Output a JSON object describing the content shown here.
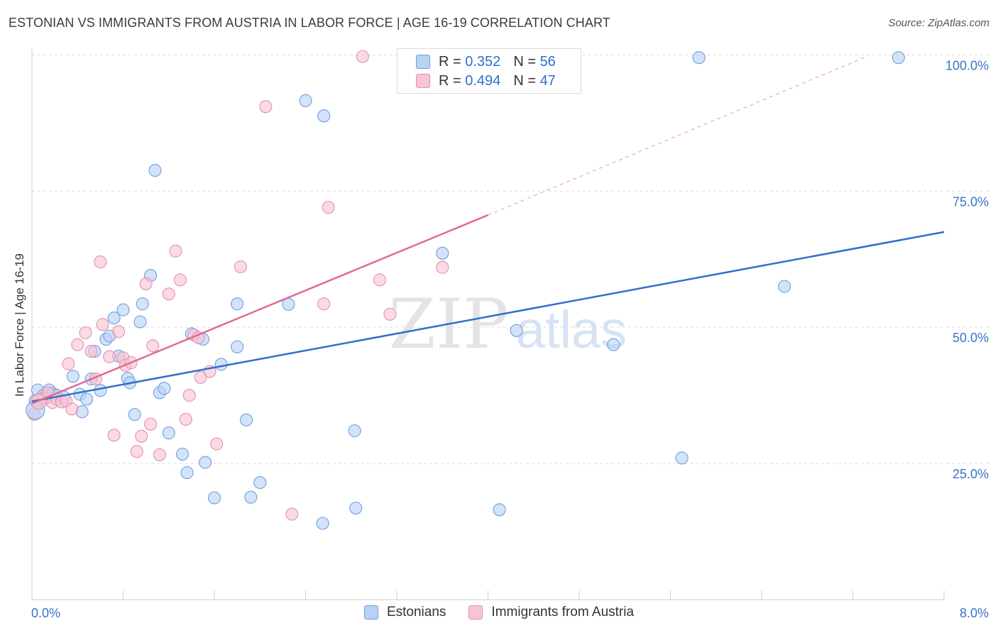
{
  "header": {
    "title": "ESTONIAN VS IMMIGRANTS FROM AUSTRIA IN LABOR FORCE | AGE 16-19 CORRELATION CHART",
    "source": "Source: ZipAtlas.com"
  },
  "watermark": {
    "zip": "ZIP",
    "atlas": "atlas"
  },
  "legend_top": {
    "rows": [
      {
        "r_label": "R =",
        "r_value": "0.352",
        "n_label": "N =",
        "n_value": "56"
      },
      {
        "r_label": "R =",
        "r_value": "0.494",
        "n_label": "N =",
        "n_value": "47"
      }
    ]
  },
  "legend_bottom": {
    "items": [
      "Estonians",
      "Immigrants from Austria"
    ]
  },
  "colors": {
    "blue_fill": "#b8d2f3",
    "blue_stroke": "#6f9fdf",
    "blue_line": "#2f6fcb",
    "pink_fill": "#f7c4d3",
    "pink_stroke": "#e98fac",
    "pink_line": "#e06a93",
    "grid": "#dddddd",
    "tick_label": "#3a72c8"
  },
  "chart_data": {
    "type": "scatter",
    "title": "ESTONIAN VS IMMIGRANTS FROM AUSTRIA IN LABOR FORCE | AGE 16-19 CORRELATION CHART",
    "xlabel": "",
    "ylabel": "In Labor Force | Age 16-19",
    "xlim": [
      0,
      8
    ],
    "ylim": [
      0,
      102
    ],
    "x_tick_labels": [
      {
        "value": 0,
        "label": "0.0%"
      },
      {
        "value": 8,
        "label": "8.0%"
      }
    ],
    "y_tick_labels": [
      {
        "value": 25,
        "label": "25.0%"
      },
      {
        "value": 50,
        "label": "50.0%"
      },
      {
        "value": 75,
        "label": "75.0%"
      },
      {
        "value": 100,
        "label": "100.0%"
      }
    ],
    "grid": true,
    "legend_position": "top-center",
    "series": [
      {
        "name": "Estonians",
        "R": 0.352,
        "N": 56,
        "trend": {
          "x": [
            0.0,
            8.0
          ],
          "y": [
            36.4,
            67.5
          ],
          "style": "solid"
        },
        "points": [
          [
            0.03,
            36.5
          ],
          [
            0.05,
            38.5
          ],
          [
            0.1,
            37.5
          ],
          [
            0.12,
            37.0
          ],
          [
            0.15,
            38.5
          ],
          [
            0.18,
            37.8
          ],
          [
            0.22,
            37.5
          ],
          [
            0.28,
            37.2
          ],
          [
            0.36,
            41.0
          ],
          [
            0.42,
            37.7
          ],
          [
            0.44,
            34.5
          ],
          [
            0.48,
            36.8
          ],
          [
            0.55,
            45.6
          ],
          [
            0.52,
            40.5
          ],
          [
            0.6,
            38.4
          ],
          [
            0.65,
            47.8
          ],
          [
            0.68,
            48.4
          ],
          [
            0.72,
            51.7
          ],
          [
            0.76,
            44.7
          ],
          [
            0.8,
            53.2
          ],
          [
            0.84,
            40.6
          ],
          [
            0.86,
            39.8
          ],
          [
            0.9,
            34.0
          ],
          [
            0.95,
            51.0
          ],
          [
            0.97,
            54.3
          ],
          [
            1.04,
            59.5
          ],
          [
            1.08,
            78.8
          ],
          [
            1.12,
            38.0
          ],
          [
            1.16,
            38.8
          ],
          [
            1.2,
            30.6
          ],
          [
            1.32,
            26.7
          ],
          [
            1.36,
            23.3
          ],
          [
            1.4,
            48.8
          ],
          [
            1.5,
            47.8
          ],
          [
            1.52,
            25.2
          ],
          [
            1.6,
            18.7
          ],
          [
            1.66,
            43.2
          ],
          [
            1.8,
            54.3
          ],
          [
            1.8,
            46.4
          ],
          [
            1.88,
            33.0
          ],
          [
            1.92,
            18.8
          ],
          [
            2.0,
            21.5
          ],
          [
            2.25,
            54.2
          ],
          [
            2.4,
            91.6
          ],
          [
            2.56,
            88.8
          ],
          [
            2.55,
            14.0
          ],
          [
            2.83,
            31.0
          ],
          [
            2.84,
            16.8
          ],
          [
            3.6,
            63.6
          ],
          [
            4.1,
            16.5
          ],
          [
            4.25,
            49.4
          ],
          [
            5.7,
            26.0
          ],
          [
            5.85,
            99.5
          ],
          [
            6.6,
            57.5
          ],
          [
            5.1,
            46.8
          ],
          [
            7.6,
            99.5
          ]
        ]
      },
      {
        "name": "Immigrants from Austria",
        "R": 0.494,
        "N": 47,
        "trend": {
          "x": [
            0.0,
            4.0
          ],
          "y": [
            36.0,
            70.6
          ],
          "style": "solid",
          "extension": {
            "x": [
              4.0,
              7.3
            ],
            "y": [
              70.6,
              99.5
            ],
            "style": "dashed"
          }
        },
        "points": [
          [
            0.02,
            34.0
          ],
          [
            0.06,
            36.5
          ],
          [
            0.1,
            37.0
          ],
          [
            0.14,
            38.0
          ],
          [
            0.18,
            36.2
          ],
          [
            0.22,
            36.8
          ],
          [
            0.26,
            36.3
          ],
          [
            0.3,
            36.5
          ],
          [
            0.32,
            43.3
          ],
          [
            0.35,
            35.0
          ],
          [
            0.4,
            46.8
          ],
          [
            0.47,
            49.0
          ],
          [
            0.52,
            45.6
          ],
          [
            0.56,
            40.5
          ],
          [
            0.6,
            62.0
          ],
          [
            0.62,
            50.5
          ],
          [
            0.68,
            44.6
          ],
          [
            0.72,
            30.2
          ],
          [
            0.76,
            49.2
          ],
          [
            0.8,
            44.4
          ],
          [
            0.82,
            43.0
          ],
          [
            0.87,
            43.5
          ],
          [
            0.92,
            27.2
          ],
          [
            0.96,
            30.0
          ],
          [
            1.0,
            58.0
          ],
          [
            1.04,
            32.2
          ],
          [
            1.06,
            46.6
          ],
          [
            1.12,
            26.6
          ],
          [
            1.2,
            56.1
          ],
          [
            1.26,
            64.0
          ],
          [
            1.3,
            58.7
          ],
          [
            1.35,
            33.1
          ],
          [
            1.38,
            37.5
          ],
          [
            1.42,
            48.6
          ],
          [
            1.48,
            40.8
          ],
          [
            1.56,
            41.9
          ],
          [
            1.62,
            28.6
          ],
          [
            1.83,
            61.1
          ],
          [
            2.05,
            90.5
          ],
          [
            2.28,
            15.7
          ],
          [
            2.56,
            54.3
          ],
          [
            2.6,
            72.0
          ],
          [
            2.9,
            99.7
          ],
          [
            3.05,
            58.7
          ],
          [
            3.14,
            52.4
          ],
          [
            3.6,
            61.0
          ],
          [
            1.46,
            48.1
          ]
        ]
      }
    ]
  }
}
